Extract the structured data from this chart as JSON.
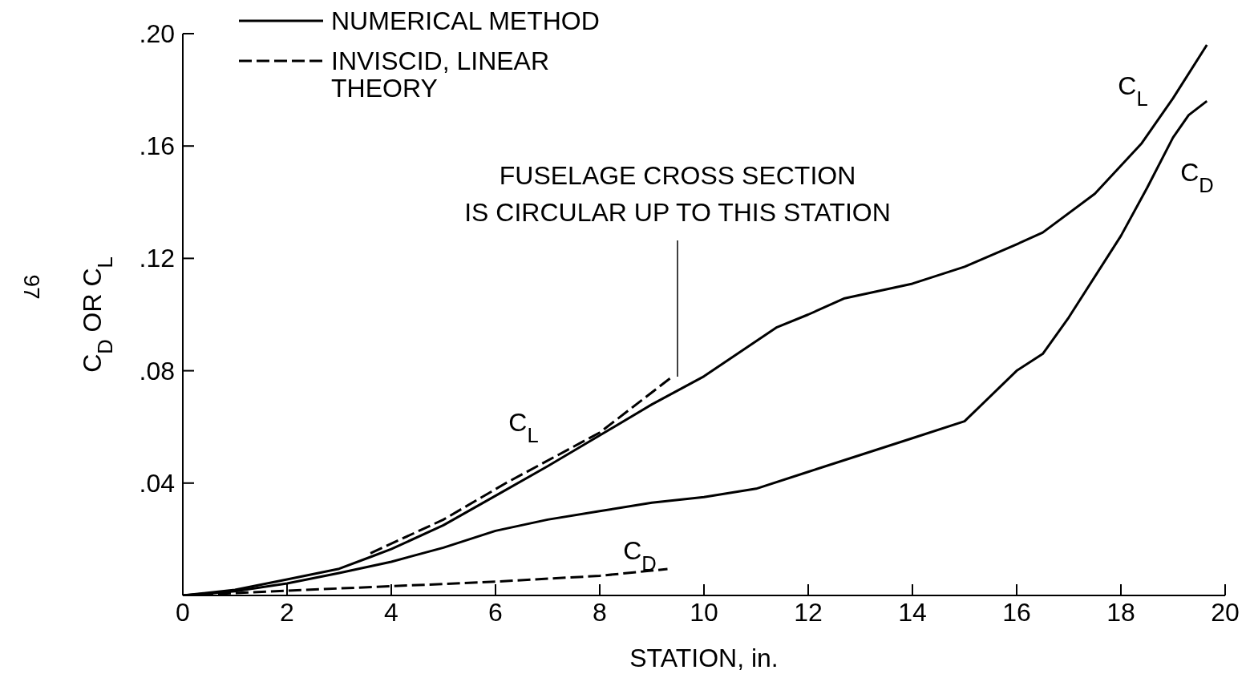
{
  "chart_data": {
    "type": "line",
    "xlabel": "STATION, in.",
    "ylabel": "C$_{D}$ OR C$_{L}$",
    "xlim": [
      0,
      20
    ],
    "xticks": [
      0,
      2,
      4,
      6,
      8,
      10,
      12,
      14,
      16,
      18,
      20
    ],
    "ylim": [
      0,
      0.2
    ],
    "yticks": [
      {
        "value": 0.04,
        "label": ".04"
      },
      {
        "value": 0.08,
        "label": ".08"
      },
      {
        "value": 0.12,
        "label": ".12"
      },
      {
        "value": 0.16,
        "label": ".16"
      },
      {
        "value": 0.2,
        "label": ".20"
      }
    ],
    "legend": "top left",
    "series": [
      {
        "name": "NUMERICAL METHOD",
        "color": "#000000",
        "line_style": "solid",
        "x": [
          0,
          1,
          2,
          3,
          3.6,
          4,
          5,
          6,
          7,
          8,
          9,
          10,
          11,
          11.4,
          12,
          12.7,
          14,
          15,
          16,
          16.5,
          17.5,
          18,
          18.4,
          19,
          19.65
        ],
        "values": [
          0,
          0.002,
          0.0057,
          0.0095,
          0.0137,
          0.0165,
          0.025,
          0.0355,
          0.046,
          0.057,
          0.068,
          0.078,
          0.0905,
          0.0955,
          0.1,
          0.1058,
          0.111,
          0.117,
          0.125,
          0.1292,
          0.143,
          0.153,
          0.161,
          0.177,
          0.196
        ]
      },
      {
        "color": "#000000",
        "line_style": "solid",
        "x": [
          0,
          1,
          2,
          3,
          4,
          5,
          6,
          7,
          8,
          9,
          10,
          11,
          12,
          13,
          14,
          15,
          16,
          16.5,
          17,
          18,
          18.5,
          19,
          19.3,
          19.65
        ],
        "values": [
          0,
          0.0015,
          0.0043,
          0.008,
          0.012,
          0.017,
          0.023,
          0.027,
          0.03,
          0.033,
          0.035,
          0.038,
          0.044,
          0.05,
          0.056,
          0.062,
          0.08,
          0.086,
          0.099,
          0.128,
          0.145,
          0.163,
          0.171,
          0.176
        ]
      },
      {
        "name": "INVISCID, LINEAR THEORY",
        "color": "#000000",
        "line_style": "dashed",
        "x": [
          3.6,
          5,
          6.2,
          8,
          9.4
        ],
        "values": [
          0.015,
          0.027,
          0.04,
          0.058,
          0.078
        ]
      },
      {
        "color": "#000000",
        "line_style": "dashed",
        "x": [
          0,
          2,
          4,
          6,
          8,
          9.3
        ],
        "values": [
          0,
          0.0017,
          0.0033,
          0.0049,
          0.007,
          0.0094
        ]
      }
    ],
    "annotations": [
      "C$_{L}$",
      "C$_{D}$",
      "C$_{L}$",
      "C$_{D}$",
      "FUSELAGE CROSS SECTION\nIS CIRCULAR UP TO THIS STATION",
      "97"
    ]
  }
}
